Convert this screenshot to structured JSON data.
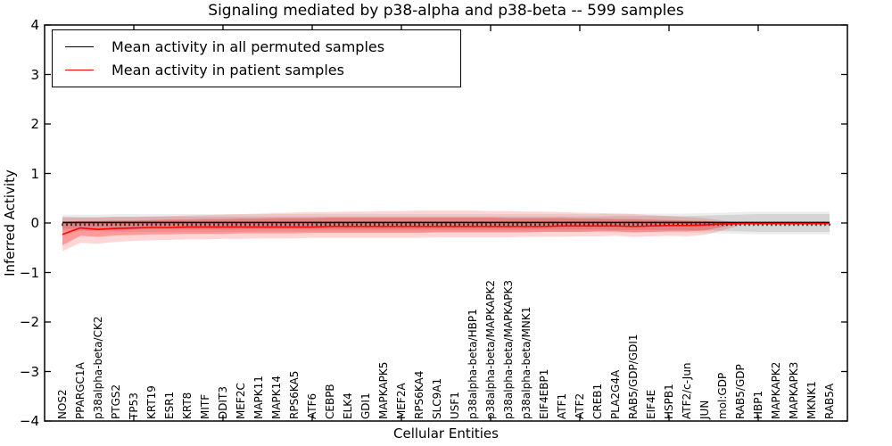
{
  "title": "Signaling mediated by p38-alpha and p38-beta -- 599 samples",
  "legend": {
    "items": [
      {
        "label": "Mean activity in all permuted samples",
        "color": "#000000"
      },
      {
        "label": "Mean activity in patient samples",
        "color": "#ff0000"
      }
    ]
  },
  "axes": {
    "ylabel": "Inferred Activity",
    "xlabel": "Cellular Entities",
    "ylim": [
      -4,
      4
    ],
    "yticks": [
      -4,
      -3,
      -2,
      -1,
      0,
      1,
      2,
      3,
      4
    ],
    "grid": false
  },
  "chart_data": {
    "type": "line",
    "title": "Signaling mediated by p38-alpha and p38-beta -- 599 samples",
    "xlabel": "Cellular Entities",
    "ylabel": "Inferred Activity",
    "ylim": [
      -4,
      4
    ],
    "legend_position": "upper left",
    "categories": [
      "NOS2",
      "PPARGC1A",
      "p38alpha-beta/CK2",
      "PTGS2",
      "TP53",
      "KRT19",
      "ESR1",
      "KRT8",
      "MITF",
      "DDIT3",
      "MEF2C",
      "MAPK11",
      "MAPK14",
      "RPS6KA5",
      "ATF6",
      "CEBPB",
      "ELK4",
      "GDI1",
      "MAPKAPK5",
      "MEF2A",
      "RPS6KA4",
      "SLC9A1",
      "USF1",
      "p38alpha-beta/HBP1",
      "p38alpha-beta/MAPKAPK2",
      "p38alpha-beta/MAPKAPK3",
      "p38alpha-beta/MNK1",
      "EIF4EBP1",
      "ATF1",
      "ATF2",
      "CREB1",
      "PLA2G4A",
      "RAB5/GDP/GDI1",
      "EIF4E",
      "HSPB1",
      "ATF2/c-Jun",
      "JUN",
      "mol:GDP",
      "RAB5/GDP",
      "HBP1",
      "MAPKAPK2",
      "MAPKAPK3",
      "MKNK1",
      "RAB5A"
    ],
    "series": [
      {
        "name": "Mean activity in all permuted samples",
        "color": "#000000",
        "values": [
          0.01,
          0.01,
          0.01,
          0.01,
          0.01,
          0.01,
          0.01,
          0.01,
          0.01,
          0.01,
          0.01,
          0.01,
          0.01,
          0.01,
          0.01,
          0.01,
          0.01,
          0.01,
          0.01,
          0.01,
          0.01,
          0.01,
          0.01,
          0.01,
          0.01,
          0.01,
          0.01,
          0.01,
          0.01,
          0.01,
          0.01,
          0.01,
          0.01,
          0.01,
          0.01,
          0.01,
          0.01,
          0.01,
          0.01,
          0.01,
          0.01,
          0.01,
          0.01,
          0.01
        ]
      },
      {
        "name": "Mean activity in patient samples",
        "color": "#ff0000",
        "values": [
          -0.23,
          -0.1,
          -0.13,
          -0.11,
          -0.1,
          -0.09,
          -0.09,
          -0.08,
          -0.08,
          -0.08,
          -0.08,
          -0.08,
          -0.08,
          -0.08,
          -0.08,
          -0.07,
          -0.07,
          -0.07,
          -0.07,
          -0.07,
          -0.07,
          -0.07,
          -0.07,
          -0.07,
          -0.07,
          -0.07,
          -0.07,
          -0.07,
          -0.06,
          -0.06,
          -0.06,
          -0.06,
          -0.07,
          -0.06,
          -0.05,
          -0.05,
          -0.04,
          -0.02,
          -0.01,
          -0.01,
          -0.01,
          -0.01,
          -0.01,
          -0.01
        ]
      }
    ],
    "bands": [
      {
        "name": "permuted-outer-band",
        "color": "rgba(128,128,128,0.14)",
        "hi": [
          0.17,
          0.17,
          0.17,
          0.18,
          0.18,
          0.18,
          0.18,
          0.18,
          0.18,
          0.18,
          0.18,
          0.18,
          0.18,
          0.18,
          0.18,
          0.18,
          0.18,
          0.18,
          0.18,
          0.18,
          0.18,
          0.18,
          0.18,
          0.18,
          0.18,
          0.18,
          0.18,
          0.18,
          0.18,
          0.18,
          0.18,
          0.19,
          0.19,
          0.19,
          0.19,
          0.19,
          0.2,
          0.21,
          0.22,
          0.23,
          0.23,
          0.23,
          0.23,
          0.23
        ],
        "lo": [
          -0.17,
          -0.17,
          -0.17,
          -0.18,
          -0.18,
          -0.18,
          -0.18,
          -0.18,
          -0.18,
          -0.18,
          -0.18,
          -0.18,
          -0.18,
          -0.18,
          -0.18,
          -0.18,
          -0.18,
          -0.18,
          -0.18,
          -0.18,
          -0.18,
          -0.18,
          -0.18,
          -0.18,
          -0.18,
          -0.18,
          -0.18,
          -0.18,
          -0.18,
          -0.18,
          -0.18,
          -0.19,
          -0.19,
          -0.19,
          -0.19,
          -0.19,
          -0.2,
          -0.21,
          -0.22,
          -0.23,
          -0.23,
          -0.23,
          -0.23,
          -0.23
        ]
      },
      {
        "name": "permuted-inner-band",
        "color": "rgba(128,128,128,0.22)",
        "hi": [
          0.12,
          0.12,
          0.12,
          0.13,
          0.13,
          0.13,
          0.13,
          0.13,
          0.13,
          0.13,
          0.13,
          0.13,
          0.13,
          0.13,
          0.13,
          0.13,
          0.13,
          0.13,
          0.13,
          0.13,
          0.13,
          0.13,
          0.13,
          0.13,
          0.13,
          0.13,
          0.13,
          0.13,
          0.13,
          0.13,
          0.13,
          0.14,
          0.14,
          0.14,
          0.14,
          0.14,
          0.15,
          0.16,
          0.17,
          0.18,
          0.18,
          0.18,
          0.18,
          0.18
        ],
        "lo": [
          -0.12,
          -0.12,
          -0.12,
          -0.13,
          -0.13,
          -0.13,
          -0.13,
          -0.13,
          -0.13,
          -0.13,
          -0.13,
          -0.13,
          -0.13,
          -0.13,
          -0.13,
          -0.13,
          -0.13,
          -0.13,
          -0.13,
          -0.13,
          -0.13,
          -0.13,
          -0.13,
          -0.13,
          -0.13,
          -0.13,
          -0.13,
          -0.13,
          -0.13,
          -0.13,
          -0.13,
          -0.14,
          -0.14,
          -0.14,
          -0.14,
          -0.14,
          -0.15,
          -0.16,
          -0.17,
          -0.18,
          -0.18,
          -0.18,
          -0.18,
          -0.18
        ]
      },
      {
        "name": "patient-outer-band",
        "color": "rgba(255,0,0,0.16)",
        "hi": [
          0.12,
          0.11,
          0.11,
          0.12,
          0.12,
          0.13,
          0.14,
          0.15,
          0.16,
          0.17,
          0.18,
          0.19,
          0.2,
          0.21,
          0.22,
          0.22,
          0.23,
          0.23,
          0.24,
          0.24,
          0.25,
          0.25,
          0.25,
          0.25,
          0.24,
          0.24,
          0.23,
          0.23,
          0.22,
          0.21,
          0.2,
          0.19,
          0.18,
          0.16,
          0.14,
          0.12,
          0.1,
          0.05,
          0.0,
          null,
          null,
          null,
          null,
          null
        ],
        "lo": [
          -0.57,
          -0.4,
          -0.42,
          -0.38,
          -0.36,
          -0.35,
          -0.34,
          -0.33,
          -0.33,
          -0.32,
          -0.32,
          -0.31,
          -0.31,
          -0.31,
          -0.3,
          -0.3,
          -0.3,
          -0.3,
          -0.3,
          -0.3,
          -0.3,
          -0.29,
          -0.29,
          -0.29,
          -0.29,
          -0.29,
          -0.28,
          -0.28,
          -0.28,
          -0.27,
          -0.27,
          -0.26,
          -0.28,
          -0.27,
          -0.26,
          -0.27,
          -0.24,
          -0.15,
          -0.05,
          null,
          null,
          null,
          null,
          null
        ]
      },
      {
        "name": "patient-inner-band",
        "color": "rgba(255,0,0,0.28)",
        "hi": [
          0.02,
          0.04,
          0.04,
          0.05,
          0.05,
          0.06,
          0.07,
          0.07,
          0.08,
          0.08,
          0.09,
          0.09,
          0.1,
          0.1,
          0.1,
          0.11,
          0.11,
          0.11,
          0.11,
          0.11,
          0.11,
          0.11,
          0.11,
          0.11,
          0.11,
          0.1,
          0.1,
          0.1,
          0.1,
          0.09,
          0.09,
          0.08,
          0.08,
          0.07,
          0.06,
          0.05,
          0.04,
          0.02,
          0.0,
          null,
          null,
          null,
          null,
          null
        ],
        "lo": [
          -0.45,
          -0.26,
          -0.28,
          -0.25,
          -0.24,
          -0.23,
          -0.23,
          -0.22,
          -0.22,
          -0.22,
          -0.21,
          -0.21,
          -0.21,
          -0.21,
          -0.2,
          -0.2,
          -0.2,
          -0.2,
          -0.2,
          -0.2,
          -0.2,
          -0.19,
          -0.19,
          -0.19,
          -0.19,
          -0.19,
          -0.19,
          -0.18,
          -0.18,
          -0.18,
          -0.17,
          -0.17,
          -0.19,
          -0.18,
          -0.17,
          -0.17,
          -0.15,
          -0.08,
          -0.02,
          null,
          null,
          null,
          null,
          null
        ]
      }
    ],
    "zero_line": {
      "y": 0,
      "style": "tick-comb",
      "color": "#000000"
    }
  }
}
